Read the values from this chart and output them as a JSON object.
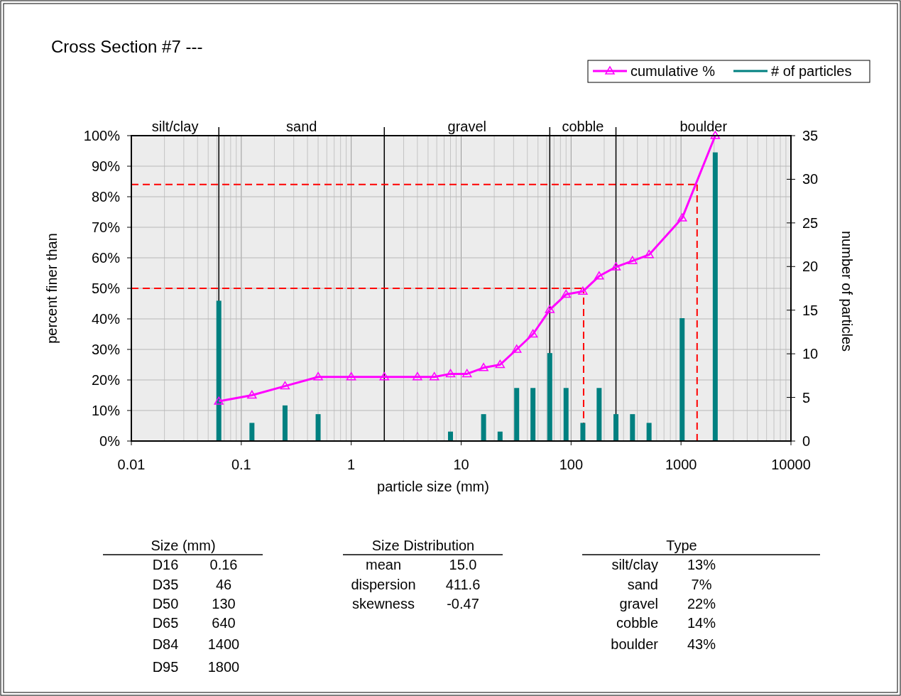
{
  "chart_data": [
    {
      "type": "bar",
      "title": "Cross Section #7 ---",
      "xlabel": "particle size (mm)",
      "ylabel": "percent finer than",
      "y2label": "number of particles",
      "x": [
        0.0625,
        0.125,
        0.25,
        0.5,
        1,
        2,
        4,
        5.7,
        8,
        11.3,
        16,
        22.6,
        32,
        45,
        64,
        90,
        128,
        180,
        256,
        362,
        512,
        1024,
        2048,
        4096
      ],
      "series": [
        {
          "name": "cumulative %",
          "type": "line",
          "color": "#ff00ff",
          "values": [
            13,
            15,
            18,
            21,
            21,
            21,
            21,
            21,
            22,
            22,
            24,
            25,
            30,
            35,
            43,
            48,
            49,
            54,
            57,
            59,
            61,
            73,
            100,
            null
          ]
        },
        {
          "name": "# of particles",
          "type": "bar",
          "axis": "y2",
          "color": "#008080",
          "values": [
            16,
            2,
            4,
            3,
            0,
            0,
            0,
            0,
            1,
            0,
            3,
            1,
            6,
            6,
            10,
            6,
            2,
            6,
            3,
            3,
            2,
            14,
            33,
            0
          ]
        }
      ],
      "log": "x",
      "marker": "triangle",
      "grid": true,
      "legend": "top right",
      "xlim": [
        0.01,
        10000
      ],
      "xticks": [
        0.01,
        0.1,
        1,
        10,
        100,
        1000,
        10000
      ],
      "ylim": [
        0,
        100
      ],
      "yticks": [
        {
          "value": 0,
          "label": "0%"
        },
        {
          "value": 10,
          "label": "10%"
        },
        {
          "value": 20,
          "label": "20%"
        },
        {
          "value": 30,
          "label": "30%"
        },
        {
          "value": 40,
          "label": "40%"
        },
        {
          "value": 50,
          "label": "50%"
        },
        {
          "value": 60,
          "label": "60%"
        },
        {
          "value": 70,
          "label": "70%"
        },
        {
          "value": 80,
          "label": "80%"
        },
        {
          "value": 90,
          "label": "90%"
        },
        {
          "value": 100,
          "label": "100%"
        }
      ],
      "y2lim": [
        0,
        35
      ],
      "y2ticks": [
        0,
        5,
        10,
        15,
        20,
        25,
        30,
        35
      ],
      "ref_lines": [
        {
          "axis": "y",
          "value": 50,
          "color": "#ff0000",
          "line_style": "dashed"
        },
        {
          "axis": "y",
          "value": 84,
          "color": "#ff0000",
          "line_style": "dashed"
        },
        {
          "axis": "x",
          "value": 130,
          "color": "#ff0000",
          "line_style": "dashed"
        },
        {
          "axis": "x",
          "value": 1400,
          "color": "#ff0000",
          "line_style": "dashed"
        }
      ],
      "bands": [
        {
          "axis": "x",
          "from": 0.01,
          "to": 0.0625,
          "label": "silt/clay",
          "color": "#ececec"
        },
        {
          "axis": "x",
          "from": 0.0625,
          "to": 2,
          "label": "sand",
          "color": "#ececec"
        },
        {
          "axis": "x",
          "from": 2,
          "to": 64,
          "label": "gravel",
          "color": "#ececec"
        },
        {
          "axis": "x",
          "from": 64,
          "to": 256,
          "label": "cobble",
          "color": "#ececec"
        },
        {
          "axis": "x",
          "from": 256,
          "to": 10000,
          "label": "boulder",
          "color": "#ececec"
        }
      ]
    },
    {
      "type": "other",
      "title": "Size (mm)",
      "annotations": [
        "D16",
        "0.16",
        "D35",
        "46",
        "D50",
        "130",
        "D65",
        "640",
        "D84",
        "1400",
        "D95",
        "1800"
      ]
    },
    {
      "type": "other",
      "title": "Size Distribution",
      "annotations": [
        "mean",
        "15.0",
        "dispersion",
        "411.6",
        "skewness",
        "-0.47"
      ]
    },
    {
      "type": "other",
      "title": "Type",
      "annotations": [
        "silt/clay",
        "13%",
        "sand",
        "7%",
        "gravel",
        "22%",
        "cobble",
        "14%",
        "boulder",
        "43%"
      ]
    }
  ]
}
